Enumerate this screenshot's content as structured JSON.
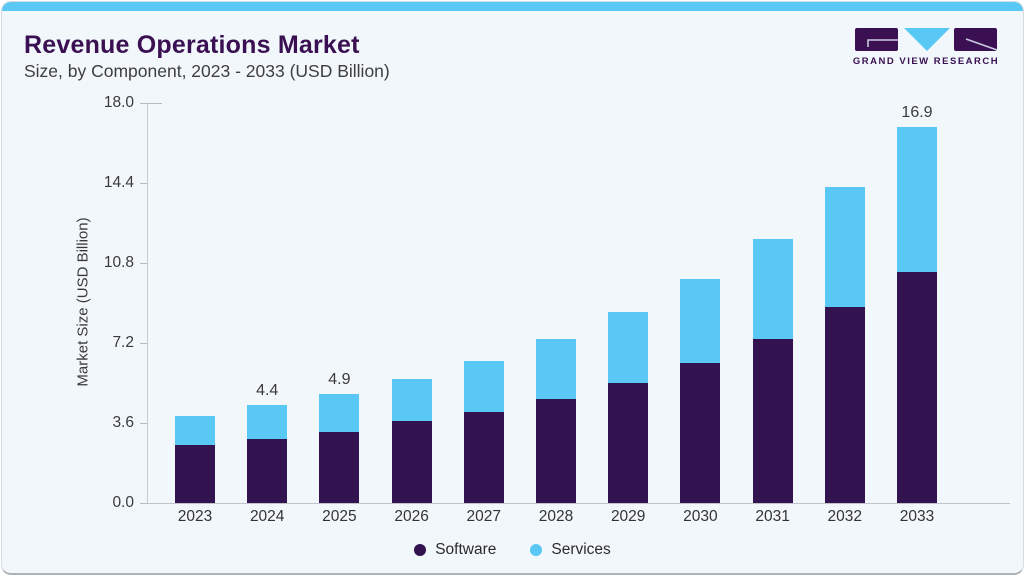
{
  "header": {
    "title": "Revenue Operations Market",
    "subtitle": "Size, by Component, 2023 - 2033 (USD Billion)",
    "logo_text": "GRAND VIEW RESEARCH"
  },
  "colors": {
    "software": "#32124F",
    "services": "#5AC8F5",
    "accent_strip": "#5AC8F5",
    "title": "#3A1053",
    "card_background": "#F2F7FB"
  },
  "chart_data": {
    "type": "bar",
    "stacked": true,
    "title": "Revenue Operations Market Size, by Component, 2023 - 2033 (USD Billion)",
    "categories": [
      "2023",
      "2024",
      "2025",
      "2026",
      "2027",
      "2028",
      "2029",
      "2030",
      "2031",
      "2032",
      "2033"
    ],
    "series": [
      {
        "name": "Software",
        "color": "#32124F",
        "values": [
          2.6,
          2.9,
          3.2,
          3.7,
          4.1,
          4.7,
          5.4,
          6.3,
          7.4,
          8.8,
          10.4
        ]
      },
      {
        "name": "Services",
        "color": "#5AC8F5",
        "values": [
          1.3,
          1.5,
          1.7,
          1.9,
          2.3,
          2.7,
          3.2,
          3.8,
          4.5,
          5.4,
          6.5
        ]
      }
    ],
    "totals": [
      3.9,
      4.4,
      4.9,
      5.6,
      6.4,
      7.4,
      8.6,
      10.1,
      11.9,
      14.2,
      16.9
    ],
    "point_labels": [
      "",
      "4.4",
      "4.9",
      "",
      "",
      "",
      "",
      "",
      "",
      "",
      "16.9"
    ],
    "ylabel": "Market Size (USD Billion)",
    "yticks": [
      "18.0",
      "14.4",
      "10.8",
      "7.2",
      "3.6",
      "0.0"
    ],
    "ylim": [
      0,
      18
    ],
    "grid": false,
    "legend_position": "bottom",
    "legend": [
      "Software",
      "Services"
    ]
  }
}
